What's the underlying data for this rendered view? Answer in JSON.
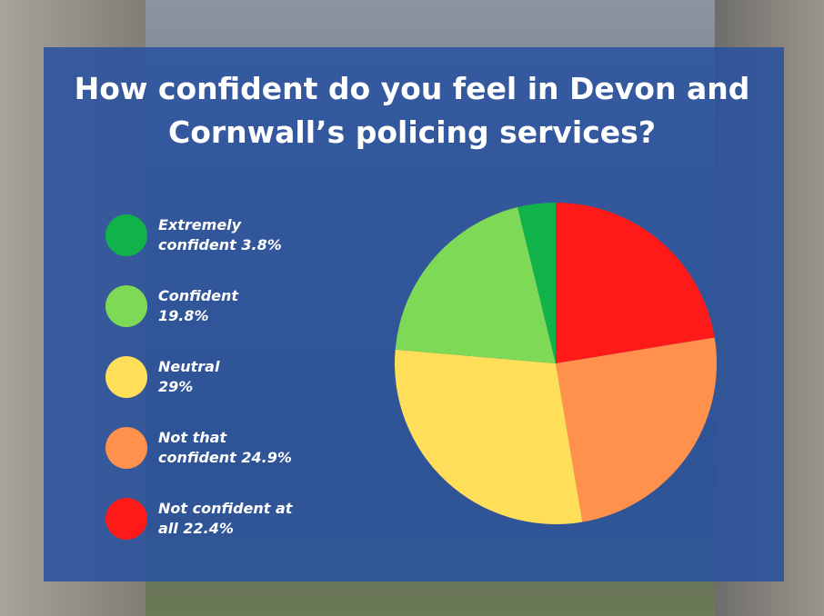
{
  "chart_data": {
    "type": "pie",
    "title": "How confident do you feel in Devon and Cornwall’s policing services?",
    "categories": [
      "Extremely confident",
      "Confident",
      "Neutral",
      "Not that confident",
      "Not confident at all"
    ],
    "values": [
      3.8,
      19.8,
      29,
      24.9,
      22.4
    ],
    "value_labels": [
      "3.8%",
      "19.8%",
      "29%",
      "24.9%",
      "22.4%"
    ],
    "colors": [
      "#12b24a",
      "#7ed957",
      "#ffde59",
      "#ff914d",
      "#ff1a1a"
    ]
  }
}
